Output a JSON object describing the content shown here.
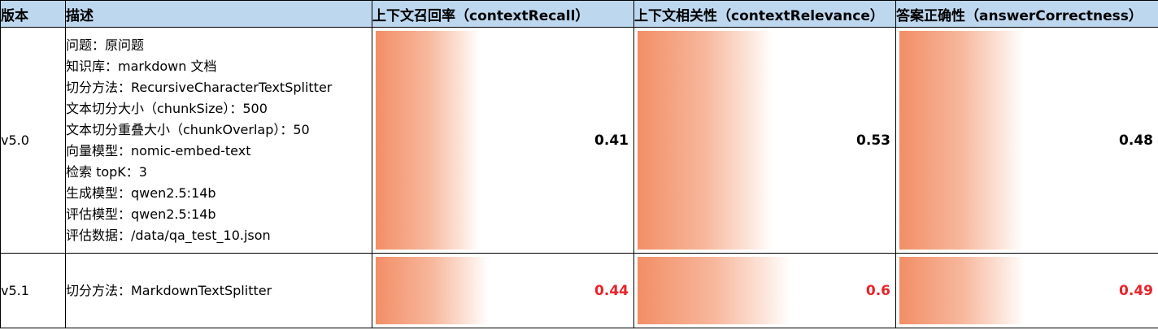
{
  "headers": {
    "version": "版本",
    "description": "描述",
    "context_recall": "上下文召回率（contextRecall）",
    "context_relevance": "上下文相关性（contextRelevance）",
    "answer_correctness": "答案正确性（answerCorrectness）"
  },
  "rows": [
    {
      "version": "v5.0",
      "description": [
        "问题：原问题",
        "知识库：markdown 文档",
        "切分方法：RecursiveCharacterTextSplitter",
        "文本切分大小（chunkSize）：500",
        "文本切分重叠大小（chunkOverlap）：50",
        "向量模型：nomic-embed-text",
        "检索 topK：3",
        "生成模型：qwen2.5:14b",
        "评估模型：qwen2.5:14b",
        "评估数据：/data/qa_test_10.json"
      ],
      "context_recall": "0.41",
      "context_relevance": "0.53",
      "answer_correctness": "0.48",
      "value_color": "#000000"
    },
    {
      "version": "v5.1",
      "description": [
        "切分方法：MarkdownTextSplitter"
      ],
      "context_recall": "0.44",
      "context_relevance": "0.6",
      "answer_correctness": "0.49",
      "value_color": "#e8232a"
    }
  ],
  "colors": {
    "header_bg": "#bdd7ee",
    "bar_start": "#f28e66",
    "highlight_text": "#e8232a"
  }
}
